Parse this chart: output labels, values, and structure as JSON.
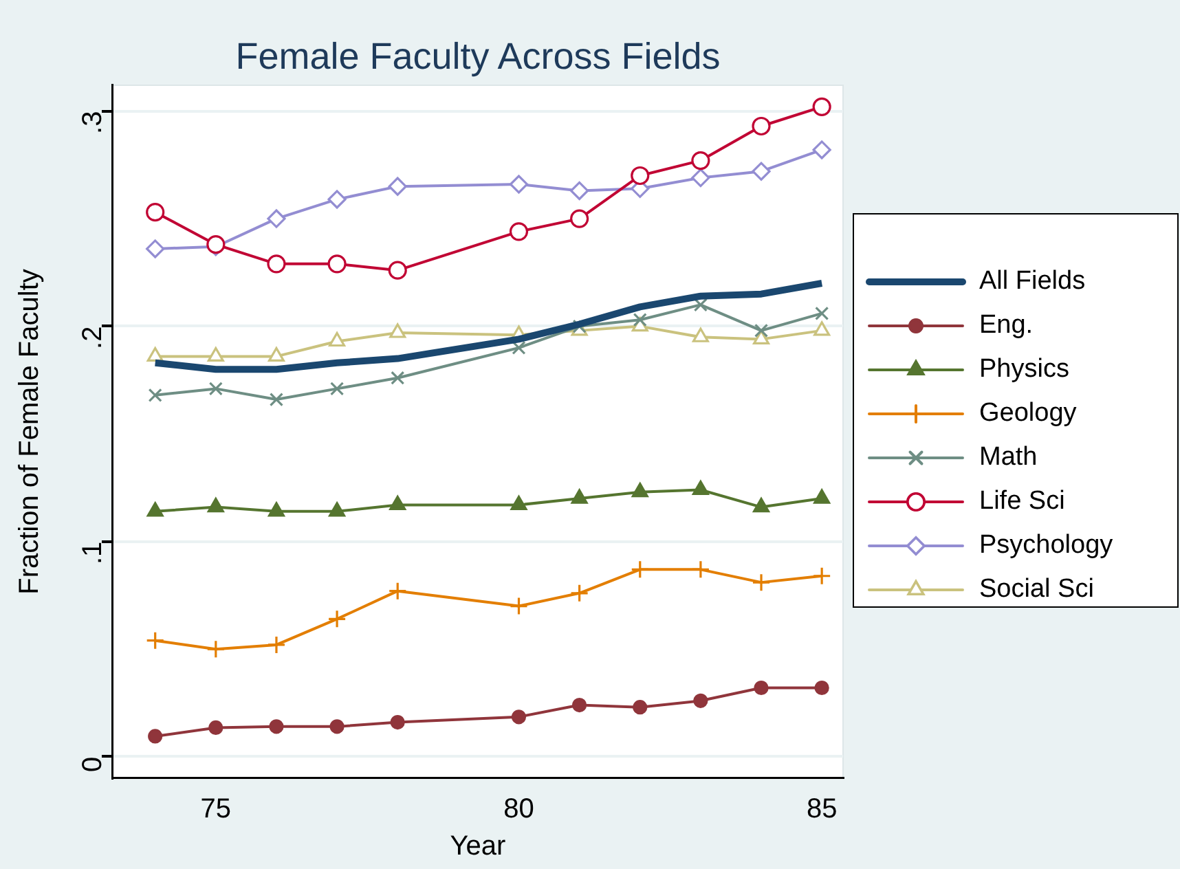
{
  "chart_data": {
    "type": "line",
    "title": "Female Faculty Across Fields",
    "xlabel": "Year",
    "ylabel": "Fraction of Female Faculty",
    "xlim": [
      73.3,
      85.35
    ],
    "xticks": [
      75,
      80,
      85
    ],
    "ylim": [
      -0.01,
      0.312
    ],
    "yticks": [
      {
        "value": 0,
        "label": "0"
      },
      {
        "value": 0.1,
        "label": ".1"
      },
      {
        "value": 0.2,
        "label": ".2"
      },
      {
        "value": 0.3,
        "label": ".3"
      }
    ],
    "grid": "y",
    "legend": "right",
    "x": [
      74,
      75,
      76,
      77,
      78,
      80,
      81,
      82,
      83,
      84,
      85
    ],
    "series": [
      {
        "name": "All Fields",
        "color": "#1a476f",
        "marker": "none",
        "values": [
          0.183,
          0.18,
          0.18,
          0.183,
          0.185,
          0.194,
          0.201,
          0.209,
          0.214,
          0.215,
          0.22
        ]
      },
      {
        "name": "Eng.",
        "color": "#90353b",
        "marker": "circle",
        "values": [
          0.0095,
          0.0135,
          0.014,
          0.014,
          0.016,
          0.0185,
          0.024,
          0.023,
          0.026,
          0.032,
          0.032
        ]
      },
      {
        "name": "Physics",
        "color": "#55752f",
        "marker": "triangle",
        "values": [
          0.114,
          0.116,
          0.114,
          0.114,
          0.117,
          0.117,
          0.12,
          0.123,
          0.124,
          0.116,
          0.12
        ]
      },
      {
        "name": "Geology",
        "color": "#e37e00",
        "marker": "plus",
        "values": [
          0.054,
          0.05,
          0.052,
          0.064,
          0.077,
          0.07,
          0.076,
          0.087,
          0.087,
          0.081,
          0.084
        ]
      },
      {
        "name": "Math",
        "color": "#6e8e84",
        "marker": "cross",
        "values": [
          0.168,
          0.171,
          0.166,
          0.171,
          0.176,
          0.19,
          0.2,
          0.203,
          0.21,
          0.198,
          0.206
        ]
      },
      {
        "name": "Life Sci",
        "color": "#c10534",
        "marker": "circle",
        "values": [
          0.253,
          0.238,
          0.229,
          0.229,
          0.226,
          0.244,
          0.25,
          0.27,
          0.277,
          0.293,
          0.302
        ]
      },
      {
        "name": "Psychology",
        "color": "#938dd2",
        "marker": "diamond",
        "values": [
          0.236,
          0.237,
          0.25,
          0.259,
          0.265,
          0.266,
          0.263,
          0.264,
          0.269,
          0.272,
          0.282
        ]
      },
      {
        "name": "Social Sci",
        "color": "#cac27e",
        "marker": "triangle",
        "values": [
          0.186,
          0.186,
          0.186,
          0.193,
          0.197,
          0.196,
          0.198,
          0.2,
          0.195,
          0.194,
          0.198
        ]
      }
    ]
  }
}
